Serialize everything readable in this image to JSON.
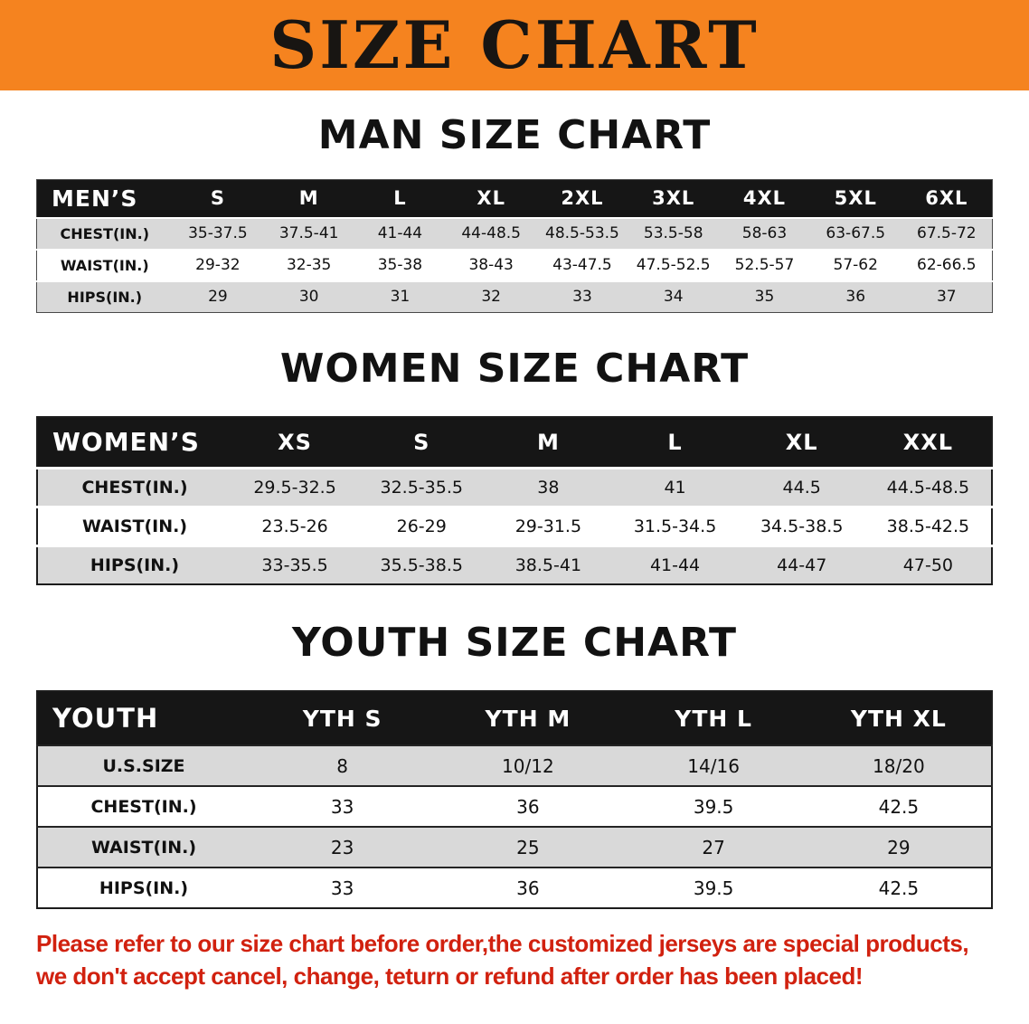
{
  "banner": {
    "title": "SIZE CHART"
  },
  "colors": {
    "banner_bg": "#f5831f",
    "banner_text": "#181512",
    "table_header_bg": "#161616",
    "table_header_text": "#ffffff",
    "row_stripe": "#d9d9d9",
    "notice_red": "#d1210f"
  },
  "chart_data": [
    {
      "type": "table",
      "title": "MAN SIZE CHART",
      "header": [
        "MEN’S",
        "S",
        "M",
        "L",
        "XL",
        "2XL",
        "3XL",
        "4XL",
        "5XL",
        "6XL"
      ],
      "rows": [
        [
          "CHEST(IN.)",
          "35-37.5",
          "37.5-41",
          "41-44",
          "44-48.5",
          "48.5-53.5",
          "53.5-58",
          "58-63",
          "63-67.5",
          "67.5-72"
        ],
        [
          "WAIST(IN.)",
          "29-32",
          "32-35",
          "35-38",
          "38-43",
          "43-47.5",
          "47.5-52.5",
          "52.5-57",
          "57-62",
          "62-66.5"
        ],
        [
          "HIPS(IN.)",
          "29",
          "30",
          "31",
          "32",
          "33",
          "34",
          "35",
          "36",
          "37"
        ]
      ]
    },
    {
      "type": "table",
      "title": "WOMEN SIZE CHART",
      "header": [
        "WOMEN’S",
        "XS",
        "S",
        "M",
        "L",
        "XL",
        "XXL"
      ],
      "rows": [
        [
          "CHEST(IN.)",
          "29.5-32.5",
          "32.5-35.5",
          "38",
          "41",
          "44.5",
          "44.5-48.5"
        ],
        [
          "WAIST(IN.)",
          "23.5-26",
          "26-29",
          "29-31.5",
          "31.5-34.5",
          "34.5-38.5",
          "38.5-42.5"
        ],
        [
          "HIPS(IN.)",
          "33-35.5",
          "35.5-38.5",
          "38.5-41",
          "41-44",
          "44-47",
          "47-50"
        ]
      ]
    },
    {
      "type": "table",
      "title": "YOUTH SIZE CHART",
      "header": [
        "YOUTH",
        "YTH S",
        "YTH M",
        "YTH L",
        "YTH XL"
      ],
      "rows": [
        [
          "U.S.SIZE",
          "8",
          "10/12",
          "14/16",
          "18/20"
        ],
        [
          "CHEST(IN.)",
          "33",
          "36",
          "39.5",
          "42.5"
        ],
        [
          "WAIST(IN.)",
          "23",
          "25",
          "27",
          "29"
        ],
        [
          "HIPS(IN.)",
          "33",
          "36",
          "39.5",
          "42.5"
        ]
      ]
    }
  ],
  "notice": {
    "lines": [
      "Please refer to our size chart before order,the customized jerseys are special products,",
      "we don't accept cancel, change, teturn or refund after order has been placed!"
    ]
  }
}
